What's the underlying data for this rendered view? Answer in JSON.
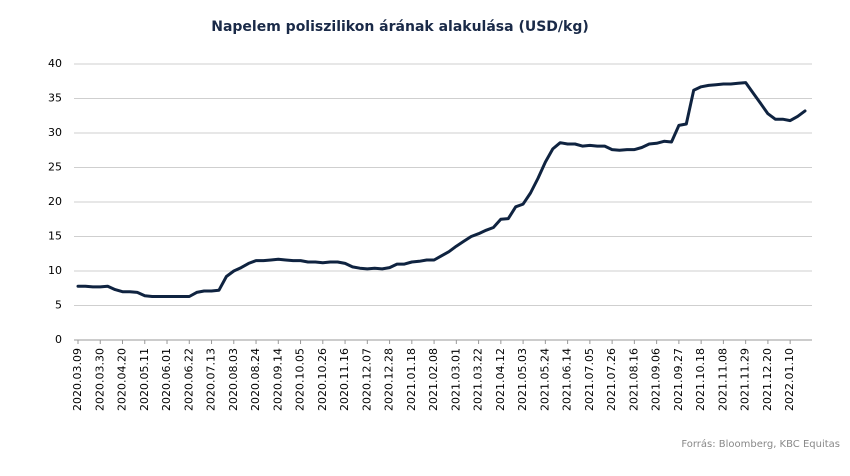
{
  "chart_data": {
    "type": "line",
    "title": "Napelem poliszilikon árának alakulása (USD/kg)",
    "source": "Forrás: Bloomberg, KBC Equitas",
    "categories": [
      "2020.03.09",
      null,
      null,
      "2020.03.30",
      null,
      null,
      "2020.04.20",
      null,
      null,
      "2020.05.11",
      null,
      null,
      "2020.06.01",
      null,
      null,
      "2020.06.22",
      null,
      null,
      "2020.07.13",
      null,
      null,
      "2020.08.03",
      null,
      null,
      "2020.08.24",
      null,
      null,
      "2020.09.14",
      null,
      null,
      "2020.10.05",
      null,
      null,
      "2020.10.26",
      null,
      null,
      "2020.11.16",
      null,
      null,
      "2020.12.07",
      null,
      null,
      "2020.12.28",
      null,
      null,
      "2021.01.18",
      null,
      null,
      "2021.02.08",
      null,
      null,
      "2021.03.01",
      null,
      null,
      "2021.03.22",
      null,
      null,
      "2021.04.12",
      null,
      null,
      "2021.05.03",
      null,
      null,
      "2021.05.24",
      null,
      null,
      "2021.06.14",
      null,
      null,
      "2021.07.05",
      null,
      null,
      "2021.07.26",
      null,
      null,
      "2021.08.16",
      null,
      null,
      "2021.09.06",
      null,
      null,
      "2021.09.27",
      null,
      null,
      "2021.10.18",
      null,
      null,
      "2021.11.08",
      null,
      null,
      "2021.11.29",
      null,
      null,
      "2021.12.20",
      null,
      null,
      "2022.01.10",
      null,
      null
    ],
    "values": [
      7.8,
      7.8,
      7.7,
      7.7,
      7.8,
      7.3,
      7.0,
      7.0,
      6.9,
      6.4,
      6.3,
      6.3,
      6.3,
      6.3,
      6.3,
      6.3,
      6.9,
      7.1,
      7.1,
      7.2,
      9.2,
      10.0,
      10.5,
      11.1,
      11.5,
      11.5,
      11.6,
      11.7,
      11.6,
      11.5,
      11.5,
      11.3,
      11.3,
      11.2,
      11.3,
      11.3,
      11.1,
      10.6,
      10.4,
      10.3,
      10.4,
      10.3,
      10.5,
      11.0,
      11.0,
      11.3,
      11.4,
      11.6,
      11.6,
      12.2,
      12.8,
      13.6,
      14.3,
      15.0,
      15.4,
      15.9,
      16.3,
      17.5,
      17.6,
      19.3,
      19.7,
      21.3,
      23.4,
      25.8,
      27.7,
      28.6,
      28.4,
      28.4,
      28.1,
      28.2,
      28.1,
      28.1,
      27.6,
      27.5,
      27.6,
      27.6,
      27.9,
      28.4,
      28.5,
      28.8,
      28.7,
      31.1,
      31.3,
      36.2,
      36.7,
      36.9,
      37.0,
      37.1,
      37.1,
      37.2,
      37.3,
      35.8,
      34.3,
      32.8,
      32.0,
      32.0,
      31.8,
      32.4,
      33.2
    ],
    "color": "#0f2340",
    "ylim": [
      0,
      40
    ],
    "yticks": [
      0,
      5,
      10,
      15,
      20,
      25,
      30,
      35,
      40
    ],
    "grid": true
  }
}
